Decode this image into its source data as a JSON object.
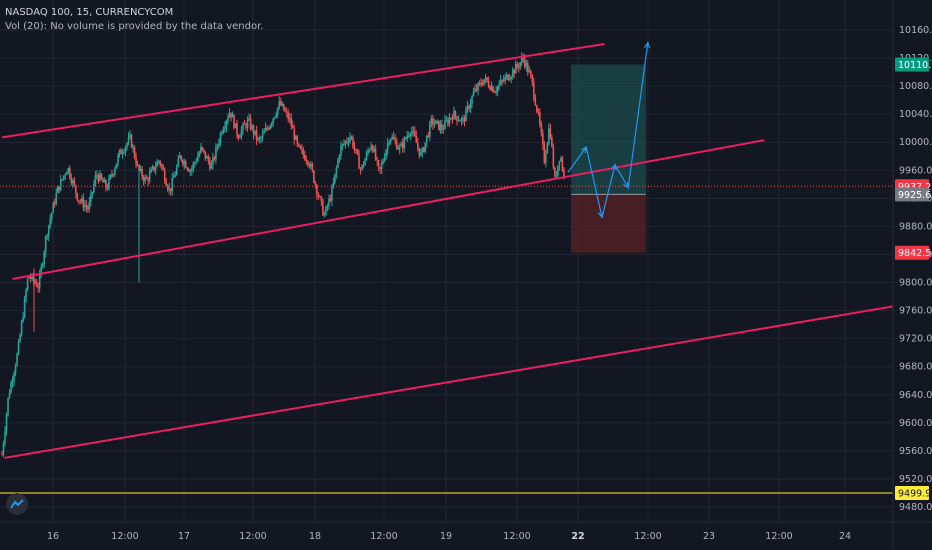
{
  "header": {
    "title": "NASDAQ 100, 15, CURRENCYCOM",
    "volume_note": "Vol (20): No volume is provided by the data vendor."
  },
  "colors": {
    "background": "#131722",
    "grid": "#232733",
    "channel": "#e91e63",
    "support": "#ffeb3b",
    "up_candle": "#26a69a",
    "down_candle": "#ef5350",
    "projection": "#2196f3",
    "target_zone": "#1e5f5b",
    "stop_zone": "#5b2227"
  },
  "chart_data": {
    "type": "candlestick",
    "y_axis": {
      "min": 9470,
      "max": 10190,
      "ticks": [
        9480,
        9520,
        9560,
        9600,
        9640,
        9680,
        9720,
        9760,
        9800,
        9840,
        9880,
        9920,
        9960,
        10000,
        10040,
        10080,
        10120,
        10160
      ],
      "tick_labels": [
        "9480.0",
        "9520.0",
        "9560.0",
        "9600.0",
        "9640.0",
        "9680.0",
        "9720.0",
        "9760.0",
        "9800.0",
        "9840.0",
        "9880.0",
        "9920.0",
        "9960.0",
        "10000.0",
        "10040.0",
        "10080.0",
        "10120.0",
        "10160.0"
      ]
    },
    "x_axis": {
      "ticks": [
        "16",
        "12:00",
        "17",
        "12:00",
        "18",
        "12:00",
        "19",
        "12:00",
        "22",
        "12:00",
        "23",
        "12:00",
        "24"
      ],
      "bold_ticks": [
        "22"
      ]
    },
    "price_badges": [
      {
        "label": "10110.9",
        "value": 10110.9,
        "kind": "target"
      },
      {
        "label": "9937.2",
        "value": 9937.2,
        "kind": "last"
      },
      {
        "label": "9925.6",
        "value": 9925.6,
        "kind": "entry"
      },
      {
        "label": "9842.5",
        "value": 9842.5,
        "kind": "stop"
      },
      {
        "label": "9499.9",
        "value": 9499.9,
        "kind": "support"
      }
    ],
    "channel_lines": [
      {
        "name": "upper",
        "from": {
          "t": 0,
          "v": 10007
        },
        "to": {
          "t": 4.6,
          "v": 10140
        }
      },
      {
        "name": "middle",
        "from": {
          "t": 0.08,
          "v": 9805
        },
        "to": {
          "t": 5.82,
          "v": 10003
        }
      },
      {
        "name": "lower",
        "from": {
          "t": 0.02,
          "v": 9550
        },
        "to": {
          "t": 6.8,
          "v": 9766
        }
      }
    ],
    "support_level": 9499.9,
    "position": {
      "entry": 9925.6,
      "target": 10110.9,
      "stop": 9842.5,
      "t_start": 4.36,
      "t_end": 4.92
    },
    "projection_path": [
      {
        "t": 4.32,
        "v": 9957
      },
      {
        "t": 4.46,
        "v": 9993
      },
      {
        "t": 4.58,
        "v": 9893
      },
      {
        "t": 4.68,
        "v": 9968
      },
      {
        "t": 4.78,
        "v": 9935
      },
      {
        "t": 4.93,
        "v": 10142
      }
    ],
    "price_path": [
      {
        "t": 0.0,
        "v": 9555
      },
      {
        "t": 0.05,
        "v": 9640
      },
      {
        "t": 0.12,
        "v": 9700
      },
      {
        "t": 0.2,
        "v": 9810
      },
      {
        "t": 0.28,
        "v": 9795
      },
      {
        "t": 0.34,
        "v": 9870
      },
      {
        "t": 0.42,
        "v": 9930
      },
      {
        "t": 0.5,
        "v": 9965
      },
      {
        "t": 0.58,
        "v": 9920
      },
      {
        "t": 0.66,
        "v": 9905
      },
      {
        "t": 0.72,
        "v": 9955
      },
      {
        "t": 0.8,
        "v": 9935
      },
      {
        "t": 0.9,
        "v": 9985
      },
      {
        "t": 0.98,
        "v": 10005
      },
      {
        "t": 1.04,
        "v": 9960
      },
      {
        "t": 1.1,
        "v": 9945
      },
      {
        "t": 1.2,
        "v": 9975
      },
      {
        "t": 1.28,
        "v": 9930
      },
      {
        "t": 1.36,
        "v": 9980
      },
      {
        "t": 1.44,
        "v": 9960
      },
      {
        "t": 1.52,
        "v": 9990
      },
      {
        "t": 1.6,
        "v": 9965
      },
      {
        "t": 1.68,
        "v": 10020
      },
      {
        "t": 1.74,
        "v": 10045
      },
      {
        "t": 1.8,
        "v": 10010
      },
      {
        "t": 1.88,
        "v": 10030
      },
      {
        "t": 1.96,
        "v": 10000
      },
      {
        "t": 2.04,
        "v": 10025
      },
      {
        "t": 2.12,
        "v": 10055
      },
      {
        "t": 2.2,
        "v": 10030
      },
      {
        "t": 2.26,
        "v": 9990
      },
      {
        "t": 2.34,
        "v": 9975
      },
      {
        "t": 2.4,
        "v": 9935
      },
      {
        "t": 2.46,
        "v": 9895
      },
      {
        "t": 2.52,
        "v": 9930
      },
      {
        "t": 2.58,
        "v": 9990
      },
      {
        "t": 2.66,
        "v": 10010
      },
      {
        "t": 2.74,
        "v": 9960
      },
      {
        "t": 2.82,
        "v": 10000
      },
      {
        "t": 2.88,
        "v": 9955
      },
      {
        "t": 2.96,
        "v": 10010
      },
      {
        "t": 3.04,
        "v": 9990
      },
      {
        "t": 3.12,
        "v": 10020
      },
      {
        "t": 3.2,
        "v": 9980
      },
      {
        "t": 3.28,
        "v": 10030
      },
      {
        "t": 3.36,
        "v": 10020
      },
      {
        "t": 3.44,
        "v": 10040
      },
      {
        "t": 3.52,
        "v": 10030
      },
      {
        "t": 3.6,
        "v": 10070
      },
      {
        "t": 3.68,
        "v": 10090
      },
      {
        "t": 3.76,
        "v": 10075
      },
      {
        "t": 3.84,
        "v": 10090
      },
      {
        "t": 3.92,
        "v": 10105
      },
      {
        "t": 3.98,
        "v": 10120
      },
      {
        "t": 4.04,
        "v": 10090
      },
      {
        "t": 4.1,
        "v": 10030
      },
      {
        "t": 4.14,
        "v": 9975
      },
      {
        "t": 4.18,
        "v": 10025
      },
      {
        "t": 4.22,
        "v": 9945
      },
      {
        "t": 4.26,
        "v": 9985
      },
      {
        "t": 4.3,
        "v": 9937
      }
    ]
  }
}
